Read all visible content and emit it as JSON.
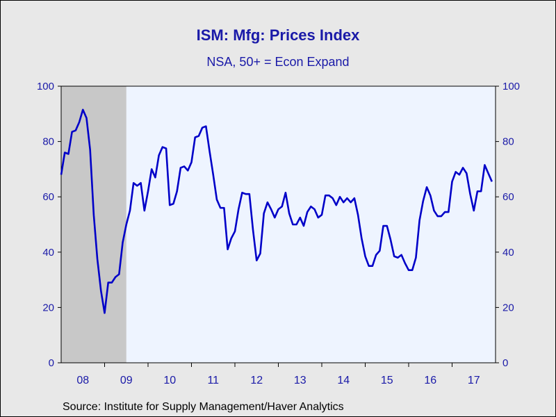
{
  "chart_data": {
    "type": "line",
    "title": "ISM: Mfg: Prices Index",
    "subtitle": "NSA, 50+ = Econ Expand",
    "source": "Source:  Institute for Supply Management/Haver Analytics",
    "ylim": [
      0,
      100
    ],
    "y_ticks": [
      0,
      20,
      40,
      60,
      80,
      100
    ],
    "x_start": "2008-01",
    "x_end": "2017-12",
    "x_tick_labels": [
      "08",
      "09",
      "10",
      "11",
      "12",
      "13",
      "14",
      "15",
      "16",
      "17"
    ],
    "recession_shading": {
      "start": "2008-01",
      "end": "2009-06"
    },
    "series": [
      {
        "color": "#0000c8",
        "x": [
          "2008-01",
          "2008-02",
          "2008-03",
          "2008-04",
          "2008-05",
          "2008-06",
          "2008-07",
          "2008-08",
          "2008-09",
          "2008-10",
          "2008-11",
          "2008-12",
          "2009-01",
          "2009-02",
          "2009-03",
          "2009-04",
          "2009-05",
          "2009-06",
          "2009-07",
          "2009-08",
          "2009-09",
          "2009-10",
          "2009-11",
          "2009-12",
          "2010-01",
          "2010-02",
          "2010-03",
          "2010-04",
          "2010-05",
          "2010-06",
          "2010-07",
          "2010-08",
          "2010-09",
          "2010-10",
          "2010-11",
          "2010-12",
          "2011-01",
          "2011-02",
          "2011-03",
          "2011-04",
          "2011-05",
          "2011-06",
          "2011-07",
          "2011-08",
          "2011-09",
          "2011-10",
          "2011-11",
          "2011-12",
          "2012-01",
          "2012-02",
          "2012-03",
          "2012-04",
          "2012-05",
          "2012-06",
          "2012-07",
          "2012-08",
          "2012-09",
          "2012-10",
          "2012-11",
          "2012-12",
          "2013-01",
          "2013-02",
          "2013-03",
          "2013-04",
          "2013-05",
          "2013-06",
          "2013-07",
          "2013-08",
          "2013-09",
          "2013-10",
          "2013-11",
          "2013-12",
          "2014-01",
          "2014-02",
          "2014-03",
          "2014-04",
          "2014-05",
          "2014-06",
          "2014-07",
          "2014-08",
          "2014-09",
          "2014-10",
          "2014-11",
          "2014-12",
          "2015-01",
          "2015-02",
          "2015-03",
          "2015-04",
          "2015-05",
          "2015-06",
          "2015-07",
          "2015-08",
          "2015-09",
          "2015-10",
          "2015-11",
          "2015-12",
          "2016-01",
          "2016-02",
          "2016-03",
          "2016-04",
          "2016-05",
          "2016-06",
          "2016-07",
          "2016-08",
          "2016-09",
          "2016-10",
          "2016-11",
          "2016-12",
          "2017-01",
          "2017-02",
          "2017-03",
          "2017-04",
          "2017-05",
          "2017-06",
          "2017-07",
          "2017-08",
          "2017-09",
          "2017-10",
          "2017-11",
          "2017-12"
        ],
        "values": [
          68,
          76,
          75.5,
          83.5,
          84,
          87,
          91.5,
          88.5,
          77,
          53.5,
          37.5,
          26,
          18,
          29,
          29,
          31,
          32,
          43.5,
          50,
          55,
          65,
          64,
          65,
          55,
          62,
          70,
          67,
          75,
          78,
          77.5,
          57,
          57.5,
          62,
          70.5,
          71,
          69.5,
          72.5,
          81.5,
          82,
          85,
          85.5,
          76.5,
          68,
          59,
          56,
          56,
          41,
          45,
          47.5,
          55.5,
          61.5,
          61,
          61,
          48,
          37,
          39.5,
          54,
          58,
          55.5,
          52.5,
          55.5,
          56.5,
          61.5,
          54,
          50,
          50,
          52.5,
          49.5,
          54.5,
          56.5,
          55.5,
          52.5,
          53.5,
          60.5,
          60.5,
          59.5,
          57,
          60,
          58,
          59.5,
          58,
          59.5,
          53.5,
          45,
          38.5,
          35,
          35,
          39,
          40.5,
          49.5,
          49.5,
          44.5,
          38.5,
          38,
          39,
          36,
          33.5,
          33.5,
          38,
          51.5,
          58.5,
          63.5,
          60.5,
          55,
          53,
          53,
          54.5,
          54.5,
          65.5,
          69,
          68,
          70.5,
          68.5,
          61,
          55,
          62,
          62,
          71.5,
          68.5,
          65.5
        ]
      }
    ]
  }
}
